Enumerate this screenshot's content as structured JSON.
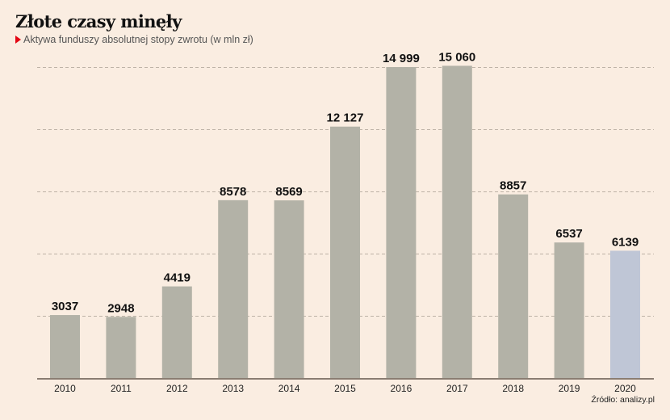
{
  "header": {
    "title": "Złote czasy minęły",
    "subtitle": "Aktywa funduszy absolutnej stopy zwrotu (w mln zł)"
  },
  "footer": {
    "source": "Źródło: analizy.pl"
  },
  "colors": {
    "background": "#faede1",
    "bar": "#b3b2a7",
    "bar_highlight": "#bfc6d6",
    "accent": "#e30613",
    "axis": "#8a7d72",
    "grid": "#bdb2a6"
  },
  "chart_data": {
    "type": "bar",
    "title": "Złote czasy minęły",
    "subtitle": "Aktywa funduszy absolutnej stopy zwrotu (w mln zł)",
    "xlabel": "",
    "ylabel": "",
    "categories": [
      "2010",
      "2011",
      "2012",
      "2013",
      "2014",
      "2015",
      "2016",
      "2017",
      "2018",
      "2019",
      "2020"
    ],
    "values": [
      3037,
      2948,
      4419,
      8578,
      8569,
      12127,
      14999,
      15060,
      8857,
      6537,
      6139
    ],
    "value_labels": [
      "3037",
      "2948",
      "4419",
      "8578",
      "8569",
      "12 127",
      "14 999",
      "15 060",
      "8857",
      "6537",
      "6139"
    ],
    "highlight_index": 10,
    "ylim": [
      0,
      15000
    ],
    "gridlines": [
      3000,
      6000,
      9000,
      12000,
      15000
    ],
    "grid": true,
    "y_tick_labels_visible": false,
    "legend": "none",
    "source": "Źródło: analizy.pl"
  }
}
